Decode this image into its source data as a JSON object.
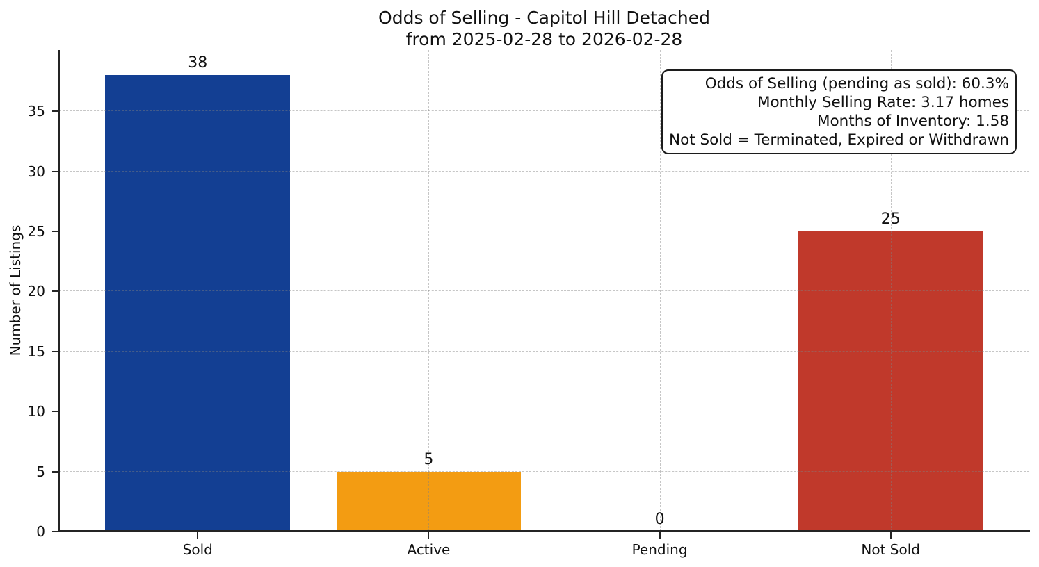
{
  "chart_data": {
    "type": "bar",
    "title": "Odds of Selling - Capitol Hill Detached",
    "subtitle": "from 2025-02-28 to 2026-02-28",
    "ylabel": "Number of Listings",
    "categories": [
      "Sold",
      "Active",
      "Pending",
      "Not Sold"
    ],
    "values": [
      38,
      5,
      0,
      25
    ],
    "value_labels": [
      "38",
      "5",
      "0",
      "25"
    ],
    "bar_colors": [
      "#133f93",
      "#f39c12",
      null,
      "#c0392b"
    ],
    "yticks": [
      0,
      5,
      10,
      15,
      20,
      25,
      30,
      35
    ],
    "ylim": [
      0,
      40.1
    ],
    "grid": true,
    "grid_style": "dashed",
    "legend_position": "none",
    "annotation": {
      "lines": [
        "Odds of Selling (pending as sold): 60.3%",
        "Monthly Selling Rate: 3.17 homes",
        "Months of Inventory: 1.58",
        "Not Sold = Terminated, Expired or Withdrawn"
      ]
    },
    "colors": {
      "axis": "#242424",
      "text": "#111111",
      "grid": "rgba(128,128,128,0.45)",
      "background": "#ffffff"
    }
  }
}
